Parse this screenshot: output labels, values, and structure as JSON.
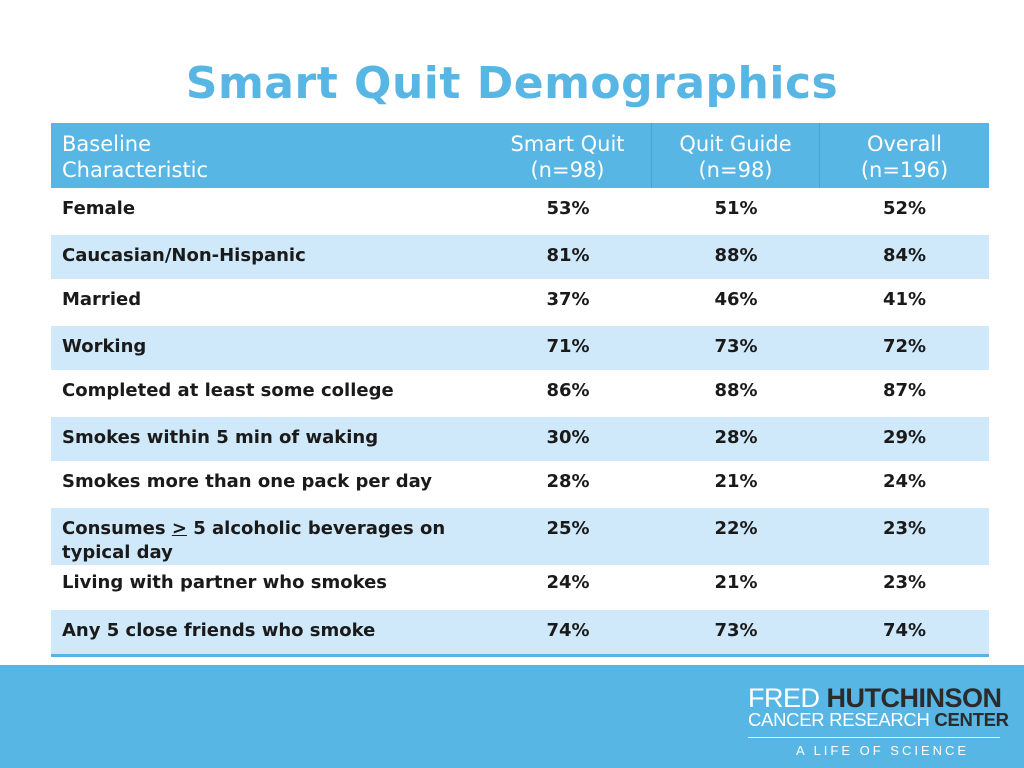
{
  "title": "Smart Quit Demographics",
  "table": {
    "headers": [
      {
        "line1": "Baseline",
        "line2": "Characteristic"
      },
      {
        "line1": "Smart Quit",
        "line2": "(n=98)"
      },
      {
        "line1": "Quit Guide",
        "line2": "(n=98)"
      },
      {
        "line1": "Overall",
        "line2": "(n=196)"
      }
    ],
    "rows": [
      {
        "label": "Female",
        "smart_quit": "53%",
        "quit_guide": "51%",
        "overall": "52%"
      },
      {
        "label": "Caucasian/Non-Hispanic",
        "smart_quit": "81%",
        "quit_guide": "88%",
        "overall": "84%"
      },
      {
        "label": "Married",
        "smart_quit": "37%",
        "quit_guide": "46%",
        "overall": "41%"
      },
      {
        "label": "Working",
        "smart_quit": "71%",
        "quit_guide": "73%",
        "overall": "72%"
      },
      {
        "label": "Completed at least some college",
        "smart_quit": "86%",
        "quit_guide": "88%",
        "overall": "87%"
      },
      {
        "label": "Smokes within 5 min of waking",
        "smart_quit": "30%",
        "quit_guide": "28%",
        "overall": "29%"
      },
      {
        "label": "Smokes more than one pack per day",
        "smart_quit": "28%",
        "quit_guide": "21%",
        "overall": "24%"
      },
      {
        "label_pre": "Consumes ",
        "label_symbol": ">",
        "label_post": " 5 alcoholic beverages on typical day",
        "smart_quit": "25%",
        "quit_guide": "22%",
        "overall": "23%"
      },
      {
        "label": "Living with partner who smokes",
        "smart_quit": "24%",
        "quit_guide": "21%",
        "overall": "23%"
      },
      {
        "label": "Any 5 close friends who smoke",
        "smart_quit": "74%",
        "quit_guide": "73%",
        "overall": "74%"
      }
    ]
  },
  "logo": {
    "line1_a": "FRED ",
    "line1_b": "HUTCHINSON",
    "line2_a": "CANCER RESEARCH ",
    "line2_b": "CENTER",
    "tagline": "A LIFE OF SCIENCE"
  },
  "colors": {
    "accent": "#58b6e4",
    "row_alt": "#cfe9fa"
  }
}
